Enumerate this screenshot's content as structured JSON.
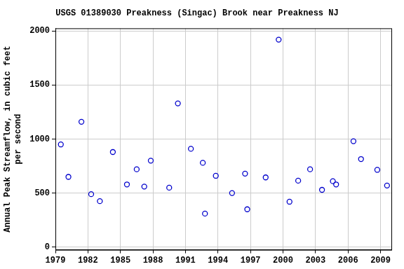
{
  "chart_data": {
    "type": "scatter",
    "title": "USGS 01389030 Preakness (Singac) Brook near Preakness NJ",
    "y_label": [
      "Annual Peak Streamflow, in cubic feet",
      "per second"
    ],
    "series": [
      {
        "name": "Annual Peak Streamflow",
        "color": "#0000cc",
        "marker": "circle",
        "x": [
          1979.5,
          1980.2,
          1981.4,
          1982.3,
          1983.1,
          1984.3,
          1985.6,
          1986.5,
          1987.2,
          1987.8,
          1989.5,
          1990.3,
          1991.5,
          1992.6,
          1992.8,
          1993.8,
          1995.3,
          1996.5,
          1996.7,
          1998.4,
          1999.6,
          2000.6,
          2001.4,
          2002.5,
          2003.6,
          2004.6,
          2004.9,
          2006.5,
          2007.2,
          2008.7,
          2009.6
        ],
        "values": [
          950,
          650,
          1160,
          490,
          425,
          880,
          580,
          720,
          560,
          800,
          550,
          1330,
          910,
          780,
          310,
          660,
          500,
          680,
          350,
          645,
          1920,
          420,
          615,
          720,
          530,
          610,
          580,
          980,
          815,
          715,
          570
        ]
      }
    ],
    "xlim": [
      1979,
      2010
    ],
    "xticks": [
      1979,
      1982,
      1985,
      1988,
      1991,
      1994,
      1997,
      2000,
      2003,
      2006,
      2009
    ],
    "ylim": [
      -25,
      2025
    ],
    "yticks": [
      0,
      500,
      1000,
      1500,
      2000
    ],
    "grid": true
  }
}
